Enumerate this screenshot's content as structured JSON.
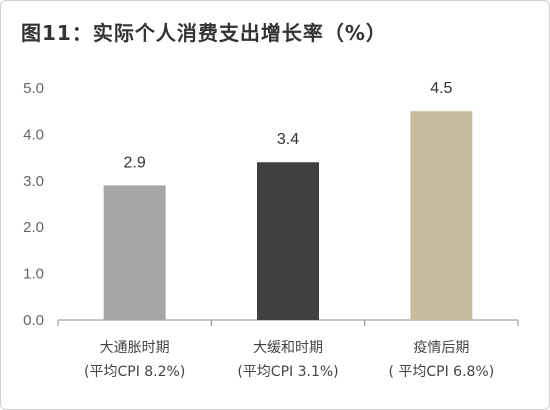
{
  "chart_data": {
    "type": "bar",
    "title": "图11：实际个人消费支出增长率（%）",
    "categories": [
      [
        "大通胀时期",
        "(平均CPI 8.2%)"
      ],
      [
        "大缓和时期",
        "(平均CPI 3.1%)"
      ],
      [
        "疫情后期",
        "( 平均CPI 6.8%)"
      ]
    ],
    "values": [
      2.9,
      3.4,
      4.5
    ],
    "data_labels": [
      "2.9",
      "3.4",
      "4.5"
    ],
    "ylim": [
      0,
      5
    ],
    "yticks": [
      "0.0",
      "1.0",
      "2.0",
      "3.0",
      "4.0",
      "5.0"
    ],
    "colors": [
      "#a6a6a6",
      "#404040",
      "#c9bb9e"
    ],
    "grid": false,
    "legend": "none"
  }
}
